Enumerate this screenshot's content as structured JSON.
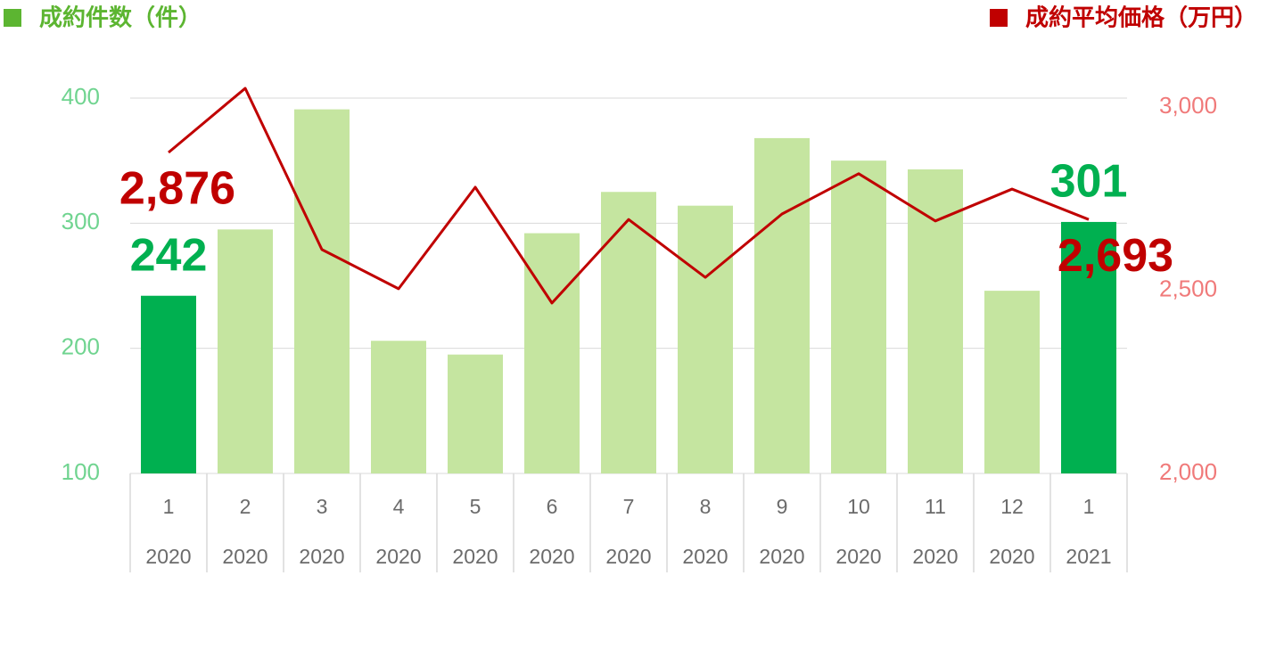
{
  "chart_data": {
    "type": "bar-line",
    "categories": [
      "1",
      "2",
      "3",
      "4",
      "5",
      "6",
      "7",
      "8",
      "9",
      "10",
      "11",
      "12",
      "1"
    ],
    "category_years": [
      "2020",
      "2020",
      "2020",
      "2020",
      "2020",
      "2020",
      "2020",
      "2020",
      "2020",
      "2020",
      "2020",
      "2020",
      "2021"
    ],
    "series": [
      {
        "name": "成約件数（件）",
        "type": "bar",
        "color": "#5cb531",
        "colors": [
          "#00b050",
          "#c5e5a0",
          "#c5e5a0",
          "#c5e5a0",
          "#c5e5a0",
          "#c5e5a0",
          "#c5e5a0",
          "#c5e5a0",
          "#c5e5a0",
          "#c5e5a0",
          "#c5e5a0",
          "#c5e5a0",
          "#00b050"
        ],
        "values": [
          242,
          295,
          391,
          206,
          195,
          292,
          325,
          314,
          368,
          350,
          343,
          246,
          301
        ],
        "value_labels": [
          "242",
          null,
          null,
          null,
          null,
          null,
          null,
          null,
          null,
          null,
          null,
          null,
          "301"
        ],
        "label_color": "#00b050"
      },
      {
        "name": "成約平均価格（万円）",
        "type": "line",
        "axis": "y2",
        "color": "#c00000",
        "values": [
          2876,
          3051,
          2611,
          2504,
          2781,
          2465,
          2693,
          2535,
          2708,
          2818,
          2689,
          2776,
          2693
        ],
        "value_labels": [
          "2,876",
          null,
          null,
          null,
          null,
          null,
          null,
          null,
          null,
          null,
          null,
          null,
          "2,693"
        ],
        "label_color": "#c00000"
      }
    ],
    "ylim": [
      100,
      400
    ],
    "yticks": [
      100,
      200,
      300,
      400
    ],
    "y2lim": [
      2000,
      3000
    ],
    "y2ticks": [
      {
        "value": 2000,
        "label": "2,000"
      },
      {
        "value": 2500,
        "label": "2,500"
      },
      {
        "value": 3000,
        "label": "3,000"
      }
    ],
    "grid": true
  }
}
